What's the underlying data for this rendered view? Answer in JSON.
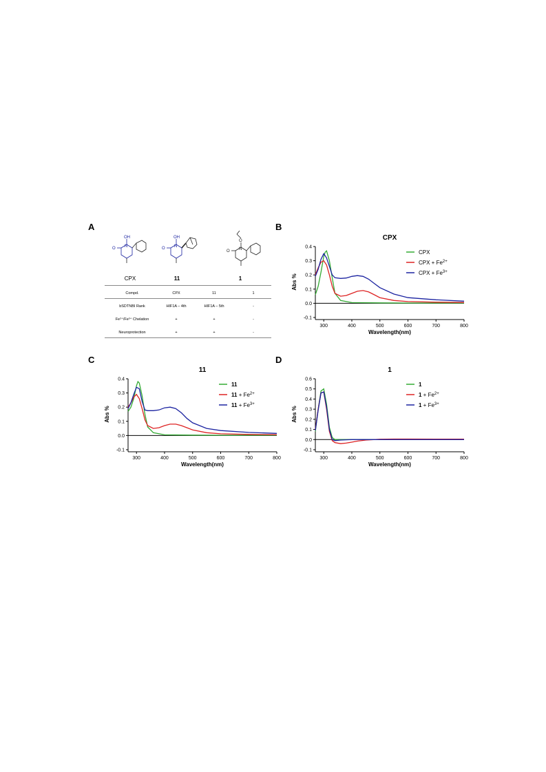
{
  "panels": {
    "A": "A",
    "B": "B",
    "C": "C",
    "D": "D"
  },
  "panel_a": {
    "molecules": [
      {
        "label": "CPX",
        "bold": false
      },
      {
        "label": "11",
        "bold": true
      },
      {
        "label": "1",
        "bold": true
      }
    ],
    "atoms": {
      "oh": "OH",
      "n": "N",
      "o": "O"
    },
    "table": {
      "header": [
        "Compd.",
        "CPX",
        "11",
        "1"
      ],
      "rows": [
        [
          "bSDTNBI Rank",
          "HIF1A – 4th",
          "HIF1A – 5th",
          "-"
        ],
        [
          "Fe²⁺/Fe³⁺ Chelation",
          "+",
          "+",
          "-"
        ],
        [
          "Neuroprotection",
          "+",
          "+",
          "-"
        ]
      ]
    }
  },
  "chart_data": [
    {
      "type": "line",
      "panel": "B",
      "title": "CPX",
      "xlabel": "Wavelength(nm)",
      "ylabel": "Abs %",
      "xlim": [
        270,
        800
      ],
      "ylim": [
        -0.1,
        0.4
      ],
      "xticks": [
        300,
        400,
        500,
        600,
        700,
        800
      ],
      "yticks": [
        -0.1,
        0.0,
        0.1,
        0.2,
        0.3,
        0.4
      ],
      "ytick_labels": [
        "-0.1",
        "0.0",
        "0.1",
        "0.2",
        "0.3",
        "0.4"
      ],
      "legend": [
        {
          "name": "CPX",
          "name_bold": "",
          "sup": "",
          "color": "#33aa33"
        },
        {
          "name": "CPX + Fe",
          "name_bold": "",
          "sup": "2+",
          "color": "#dd2222"
        },
        {
          "name": "CPX + Fe",
          "name_bold": "",
          "sup": "3+",
          "color": "#1a22a0"
        }
      ],
      "series": [
        {
          "x": [
            270,
            280,
            290,
            300,
            305,
            310,
            320,
            330,
            340,
            360,
            400,
            500,
            600,
            700,
            800
          ],
          "y": [
            0.06,
            0.12,
            0.22,
            0.33,
            0.36,
            0.37,
            0.3,
            0.18,
            0.07,
            0.02,
            0.005,
            0.003,
            0.002,
            0.002,
            0.002
          ]
        },
        {
          "x": [
            270,
            280,
            290,
            300,
            310,
            320,
            330,
            340,
            360,
            380,
            400,
            420,
            440,
            460,
            480,
            500,
            550,
            600,
            700,
            800
          ],
          "y": [
            0.2,
            0.25,
            0.29,
            0.3,
            0.27,
            0.2,
            0.12,
            0.07,
            0.05,
            0.055,
            0.07,
            0.085,
            0.09,
            0.08,
            0.06,
            0.04,
            0.02,
            0.012,
            0.008,
            0.006
          ]
        },
        {
          "x": [
            270,
            280,
            290,
            300,
            310,
            320,
            330,
            340,
            360,
            380,
            400,
            420,
            440,
            460,
            480,
            500,
            550,
            600,
            700,
            800
          ],
          "y": [
            0.19,
            0.24,
            0.31,
            0.35,
            0.32,
            0.26,
            0.2,
            0.18,
            0.175,
            0.178,
            0.19,
            0.195,
            0.19,
            0.17,
            0.14,
            0.11,
            0.065,
            0.04,
            0.025,
            0.015
          ]
        }
      ]
    },
    {
      "type": "line",
      "panel": "C",
      "title": "11",
      "xlabel": "Wavelength(nm)",
      "ylabel": "Abs %",
      "xlim": [
        270,
        800
      ],
      "ylim": [
        -0.1,
        0.4
      ],
      "xticks": [
        300,
        400,
        500,
        600,
        700,
        800
      ],
      "yticks": [
        -0.1,
        0.0,
        0.1,
        0.2,
        0.3,
        0.4
      ],
      "ytick_labels": [
        "-0.1",
        "0.0",
        "0.1",
        "0.2",
        "0.3",
        "0.4"
      ],
      "legend": [
        {
          "name": "",
          "name_bold": "11",
          "sup": "",
          "color": "#33aa33"
        },
        {
          "name": " + Fe",
          "name_bold": "11",
          "sup": "2+",
          "color": "#dd2222"
        },
        {
          "name": " + Fe",
          "name_bold": "11",
          "sup": "3+",
          "color": "#1a22a0"
        }
      ],
      "series": [
        {
          "x": [
            270,
            280,
            290,
            300,
            305,
            310,
            320,
            330,
            340,
            360,
            400,
            500,
            600,
            700,
            800
          ],
          "y": [
            0.17,
            0.2,
            0.26,
            0.35,
            0.38,
            0.37,
            0.28,
            0.15,
            0.06,
            0.02,
            0.005,
            0.003,
            0.002,
            0.002,
            0.002
          ]
        },
        {
          "x": [
            270,
            280,
            290,
            300,
            310,
            320,
            330,
            340,
            360,
            380,
            400,
            420,
            440,
            460,
            480,
            500,
            550,
            600,
            700,
            800
          ],
          "y": [
            0.2,
            0.23,
            0.27,
            0.29,
            0.26,
            0.19,
            0.11,
            0.07,
            0.05,
            0.055,
            0.07,
            0.08,
            0.08,
            0.07,
            0.055,
            0.04,
            0.02,
            0.012,
            0.008,
            0.006
          ]
        },
        {
          "x": [
            270,
            280,
            290,
            300,
            310,
            320,
            330,
            340,
            360,
            380,
            400,
            420,
            440,
            460,
            480,
            500,
            550,
            600,
            700,
            800
          ],
          "y": [
            0.19,
            0.23,
            0.29,
            0.34,
            0.33,
            0.24,
            0.18,
            0.175,
            0.175,
            0.18,
            0.195,
            0.2,
            0.19,
            0.16,
            0.12,
            0.09,
            0.05,
            0.035,
            0.022,
            0.015
          ]
        }
      ]
    },
    {
      "type": "line",
      "panel": "D",
      "title": "1",
      "xlabel": "Wavelength(nm)",
      "ylabel": "Abs %",
      "xlim": [
        270,
        800
      ],
      "ylim": [
        -0.1,
        0.6
      ],
      "xticks": [
        300,
        400,
        500,
        600,
        700,
        800
      ],
      "yticks": [
        -0.1,
        0.0,
        0.1,
        0.2,
        0.3,
        0.4,
        0.5,
        0.6
      ],
      "ytick_labels": [
        "-0.1",
        "0.0",
        "0.1",
        "0.2",
        "0.3",
        "0.4",
        "0.5",
        "0.6"
      ],
      "legend": [
        {
          "name": "",
          "name_bold": "1",
          "sup": "",
          "color": "#33aa33"
        },
        {
          "name": " + Fe",
          "name_bold": "1",
          "sup": "2+",
          "color": "#dd2222"
        },
        {
          "name": " + Fe",
          "name_bold": "1",
          "sup": "3+",
          "color": "#1a22a0"
        }
      ],
      "series": [
        {
          "x": [
            270,
            280,
            290,
            300,
            310,
            320,
            330,
            340,
            360,
            400,
            500,
            600,
            700,
            800
          ],
          "y": [
            0.08,
            0.3,
            0.48,
            0.5,
            0.35,
            0.12,
            0.02,
            0.0,
            0.0,
            0.0,
            0.0,
            0.0,
            0.0,
            0.0
          ]
        },
        {
          "x": [
            270,
            280,
            290,
            300,
            310,
            320,
            330,
            340,
            360,
            380,
            400,
            420,
            450,
            500,
            550,
            600,
            700,
            800
          ],
          "y": [
            0.1,
            0.3,
            0.46,
            0.47,
            0.3,
            0.08,
            -0.01,
            -0.03,
            -0.04,
            -0.035,
            -0.025,
            -0.015,
            -0.005,
            0.003,
            0.005,
            0.005,
            0.004,
            0.004
          ]
        },
        {
          "x": [
            270,
            280,
            290,
            300,
            310,
            320,
            330,
            340,
            360,
            400,
            500,
            600,
            700,
            800
          ],
          "y": [
            0.09,
            0.29,
            0.46,
            0.47,
            0.32,
            0.1,
            0.0,
            -0.01,
            -0.005,
            0.0,
            0.0,
            0.0,
            0.0,
            0.0
          ]
        }
      ]
    }
  ]
}
